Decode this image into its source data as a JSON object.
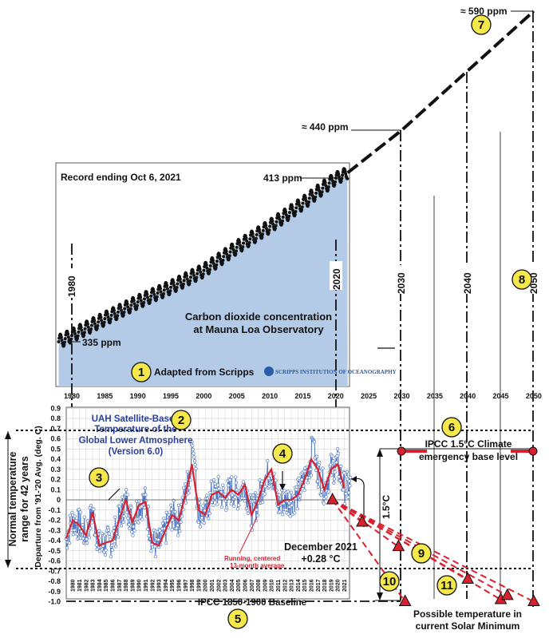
{
  "colors": {
    "co2_fill": "#b3cbe6",
    "uah_line": "#4f78c4",
    "avg_line": "#d8202e",
    "marker": "#d8202e",
    "badge": "#f5e84a"
  },
  "annotations": {
    "ppm_590": "≈ 590 ppm",
    "ppm_440": "≈ 440 ppm",
    "ppm_413": "413 ppm",
    "ppm_335": "335 ppm",
    "record_ending": "Record ending Oct 6, 2021",
    "co2_title_1": "Carbon dioxide concentration",
    "co2_title_2": "at Mauna Loa Observatory",
    "adapted": "Adapted from Scripps",
    "scripps_logo": "SCRIPPS INSTITUTION OF OCEANOGRAPHY",
    "uah_1": "UAH Satellite-Based",
    "uah_2": "Temperature of the",
    "uah_3": "Global Lower Atmosphere",
    "uah_4": "(Version 6.0)",
    "ipcc_15_1": "IPCC 1.5°C Climate",
    "ipcc_15_2": "emergency base level",
    "dec_1": "December 2021",
    "dec_2": "+0.28 °C",
    "running_1": "Running, centered",
    "running_2": "13-month average",
    "baseline": "IPCC 1850-1900 Baseline",
    "possible_1": "Possible temperature in",
    "possible_2": "current Solar Minimum",
    "normal_1": "Normal temperature",
    "normal_2": "range for 42 years",
    "yaxis": "Departure from '91-'20 Avg. (deg. C)",
    "deg15": "1.5°C",
    "v1980": "1980",
    "v2020": "2020",
    "v2030": "2030",
    "v2040": "2040",
    "v2050": "2050"
  },
  "badges": [
    "1",
    "2",
    "3",
    "4",
    "5",
    "6",
    "7",
    "8",
    "9",
    "10",
    "11"
  ],
  "chart_data": [
    {
      "type": "scatter",
      "title": "Carbon dioxide concentration at Mauna Loa Observatory",
      "ylabel": "",
      "x_ticks": [
        1980,
        1985,
        1990,
        1995,
        2000,
        2005,
        2010,
        2015,
        2020,
        2025,
        2030,
        2035,
        2040,
        2045,
        2050
      ],
      "series": [
        {
          "name": "CO2 (ppm) Keeling curve",
          "x": [
            1978,
            1980,
            1985,
            1990,
            1995,
            2000,
            2005,
            2010,
            2015,
            2020,
            2021.8
          ],
          "y": [
            335,
            338,
            346,
            354,
            361,
            369,
            380,
            390,
            401,
            413,
            416
          ]
        },
        {
          "name": "Projection",
          "x": [
            2021.8,
            2030,
            2050
          ],
          "y": [
            416,
            440,
            590
          ]
        }
      ]
    },
    {
      "type": "line",
      "title": "UAH Satellite-Based Temperature of the Global Lower Atmosphere (Version 6.0)",
      "ylabel": "Departure from '91-'20 Avg. (deg. C)",
      "ylim": [
        -1.0,
        0.9
      ],
      "y_ticks": [
        0.9,
        0.8,
        0.7,
        0.6,
        0.5,
        0.4,
        0.3,
        0.2,
        0.1,
        0,
        -0.1,
        -0.2,
        -0.3,
        -0.4,
        -0.5,
        -0.6,
        -0.7,
        -0.8,
        -0.9,
        -1.0
      ],
      "x_ticks": [
        1980,
        1981,
        1982,
        1983,
        1984,
        1985,
        1986,
        1987,
        1988,
        1989,
        1990,
        1991,
        1992,
        1993,
        1994,
        1995,
        1996,
        1997,
        1998,
        1999,
        2000,
        2001,
        2002,
        2003,
        2004,
        2005,
        2006,
        2007,
        2008,
        2009,
        2010,
        2011,
        2012,
        2013,
        2014,
        2015,
        2016,
        2017,
        2018,
        2019,
        2020,
        2021
      ],
      "series": [
        {
          "name": "Running, centered 13-month average",
          "x": [
            1979,
            1980,
            1981,
            1982,
            1983,
            1984,
            1985,
            1986,
            1987,
            1988,
            1989,
            1990,
            1991,
            1992,
            1993,
            1994,
            1995,
            1996,
            1997,
            1998,
            1999,
            2000,
            2001,
            2002,
            2003,
            2004,
            2005,
            2006,
            2007,
            2008,
            2009,
            2010,
            2011,
            2012,
            2013,
            2014,
            2015,
            2016,
            2017,
            2018,
            2019,
            2020,
            2021
          ],
          "y": [
            -0.38,
            -0.2,
            -0.25,
            -0.35,
            -0.12,
            -0.45,
            -0.42,
            -0.4,
            -0.2,
            0.0,
            -0.22,
            -0.05,
            -0.02,
            -0.42,
            -0.45,
            -0.3,
            -0.15,
            -0.2,
            0.05,
            0.35,
            -0.1,
            -0.15,
            0.05,
            0.08,
            0.02,
            0.1,
            0.05,
            0.15,
            -0.15,
            0.0,
            0.2,
            0.3,
            -0.05,
            0.0,
            0.0,
            0.05,
            0.2,
            0.4,
            0.3,
            0.1,
            0.3,
            0.35,
            0.12
          ]
        }
      ],
      "reference_lines": [
        {
          "label": "IPCC 1.5°C Climate emergency base level",
          "y": 0.48
        },
        {
          "label": "IPCC 1850-1900 Baseline",
          "y": -1.0
        }
      ],
      "possible_markers": {
        "x": [
          2019.5,
          2024,
          2029.5,
          2030.5,
          2040,
          2045,
          2046,
          2050
        ],
        "y": [
          0.0,
          -0.22,
          -0.46,
          -1.0,
          -0.78,
          -0.98,
          -0.94,
          -1.0
        ]
      }
    }
  ]
}
